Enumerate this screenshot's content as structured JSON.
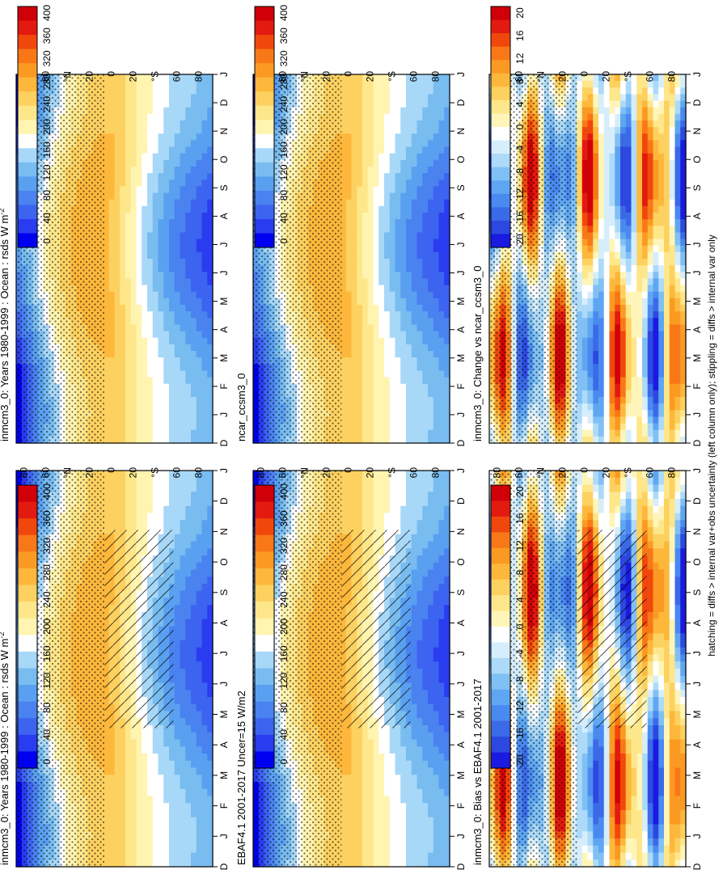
{
  "footnote": "hatching = diffs > internal var+obs uncertainty (left column only); stippling = diffs > internal var only",
  "months": [
    "D",
    "J",
    "F",
    "M",
    "A",
    "M",
    "J",
    "J",
    "A",
    "S",
    "O",
    "N",
    "D",
    "J"
  ],
  "lat_labels": [
    "80",
    "60",
    "°N",
    "20",
    "0",
    "20",
    "°S",
    "60",
    "80"
  ],
  "palettes": {
    "abs": [
      "#0000f0",
      "#2a3cf0",
      "#3c64f0",
      "#4a82f0",
      "#5aa0f0",
      "#78bcf0",
      "#a8d8f8",
      "#ffffff",
      "#fff4b0",
      "#fee68a",
      "#fdd160",
      "#fdb83c",
      "#fb9a22",
      "#f87818",
      "#f0480c",
      "#e21a10",
      "#d00008"
    ],
    "diff": [
      "#1a1ae0",
      "#2d48e0",
      "#3b6ae8",
      "#4a8af0",
      "#5fa6f2",
      "#80c0f5",
      "#acdaf8",
      "#d6eefb",
      "#ffffff",
      "#fff5b8",
      "#fee68a",
      "#fdd160",
      "#fdb83c",
      "#fb9a22",
      "#f87818",
      "#f0480c",
      "#e21a10",
      "#d00008"
    ]
  },
  "colorbars": {
    "abs_labels": [
      "400",
      "360",
      "320",
      "280",
      "240",
      "200",
      "160",
      "120",
      "80",
      "40",
      "0"
    ],
    "diff_labels": [
      "20",
      "16",
      "12",
      "8",
      "4",
      "0",
      "-4",
      "-8",
      "-12",
      "-16",
      "-20"
    ]
  },
  "chart_data": [
    {
      "type": "heatmap",
      "panel": "left-top",
      "title": "inmcm3_0: Years 1980-1999 : Ocean : rsds W m",
      "title_sup": "-2",
      "field": "abs",
      "hatching": true,
      "stippling": true
    },
    {
      "type": "heatmap",
      "panel": "left-middle",
      "title": "EBAF4.1 2001-2017 Uncer=15 W/m2",
      "field": "abs",
      "hatching": true,
      "stippling": true
    },
    {
      "type": "heatmap",
      "panel": "left-bottom",
      "title": "inmcm3_0: Bias vs EBAF4.1 2001-2017",
      "field": "diff",
      "hatching": true,
      "stippling": true
    },
    {
      "type": "heatmap",
      "panel": "right-top",
      "title": "inmcm3_0: Years 1980-1999 : Ocean : rsds W m",
      "title_sup": "-2",
      "field": "abs",
      "hatching": false,
      "stippling": true
    },
    {
      "type": "heatmap",
      "panel": "right-middle",
      "title": "ncar_ccsm3_0",
      "field": "abs",
      "hatching": false,
      "stippling": true
    },
    {
      "type": "heatmap",
      "panel": "right-bottom",
      "title": "inmcm3_0: Change vs ncar_ccsm3_0",
      "field": "diff",
      "hatching": false,
      "stippling": true
    }
  ]
}
